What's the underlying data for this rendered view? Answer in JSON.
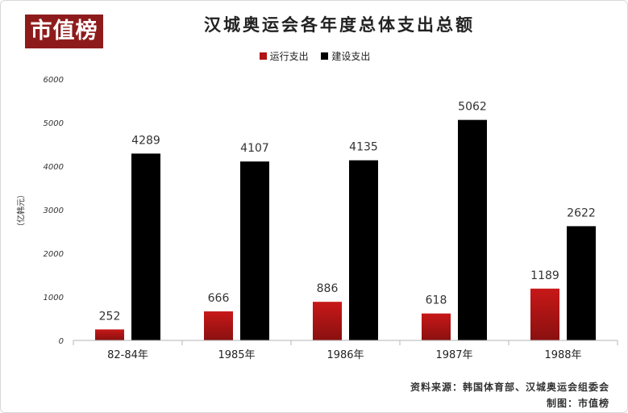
{
  "logo": "市值榜",
  "chart_data": {
    "type": "bar",
    "title": "汉城奥运会各年度总体支出总额",
    "ylabel": "（亿韩元）",
    "xlabel": "",
    "categories": [
      "82-84年",
      "1985年",
      "1986年",
      "1987年",
      "1988年"
    ],
    "series": [
      {
        "name": "运行支出",
        "values": [
          252,
          666,
          886,
          618,
          1189
        ],
        "color": "#b01414"
      },
      {
        "name": "建设支出",
        "values": [
          4289,
          4107,
          4135,
          5062,
          2622
        ],
        "color": "#000000"
      }
    ],
    "ylim": [
      0,
      6000
    ],
    "yticks": [
      0,
      1000,
      2000,
      3000,
      4000,
      5000,
      6000
    ],
    "grid": false,
    "legend": "top-center"
  },
  "footer": {
    "source": "资料来源：韩国体育部、汉城奥运会组委会",
    "maker": "制图：市值榜"
  }
}
